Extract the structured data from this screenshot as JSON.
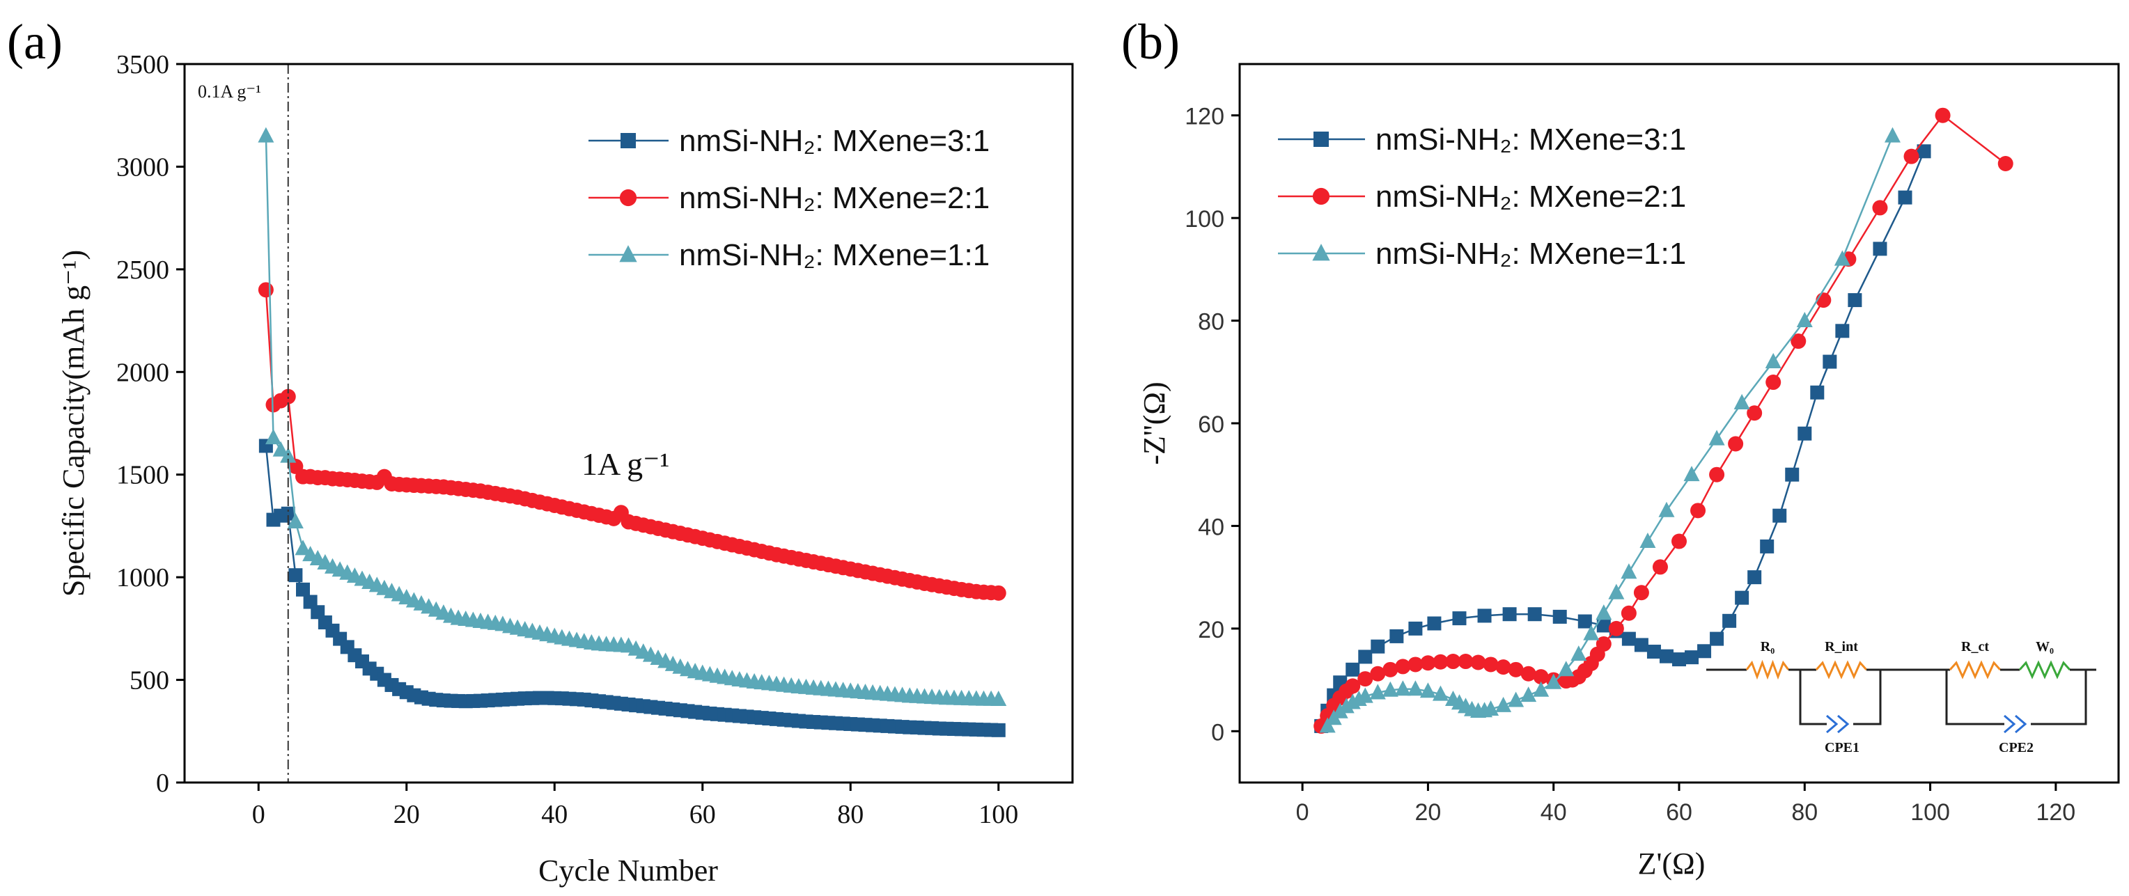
{
  "panels": {
    "a": {
      "label": "(a)"
    },
    "b": {
      "label": "(b)"
    }
  },
  "chart_data": [
    {
      "id": "a",
      "type": "scatter",
      "title": "",
      "xlabel": "Cycle Number",
      "ylabel": "Specific Capacity(mAh g⁻¹)",
      "xlim": [
        -10,
        110
      ],
      "ylim": [
        0,
        3500
      ],
      "xticks": [
        0,
        20,
        40,
        60,
        80,
        100
      ],
      "yticks": [
        0,
        500,
        1000,
        1500,
        2000,
        2500,
        3000,
        3500
      ],
      "grid": false,
      "legend_position": "top-right",
      "annotations": {
        "low_rate": "0.1A g⁻¹",
        "high_rate": "1A g⁻¹",
        "rate_switch_cycle": 4
      },
      "series": [
        {
          "name": "nmSi-NH₂: MXene=3:1",
          "marker": "square",
          "color": "#1f5a8c",
          "x": [
            1,
            2,
            3,
            4,
            5,
            6,
            7,
            8,
            9,
            10,
            11,
            12,
            13,
            14,
            15,
            16,
            17,
            18,
            19,
            20,
            21,
            22,
            23,
            24,
            25,
            26,
            27,
            28,
            29,
            30,
            31,
            32,
            33,
            34,
            35,
            36,
            37,
            38,
            39,
            40,
            41,
            42,
            43,
            44,
            45,
            46,
            47,
            48,
            49,
            50,
            51,
            52,
            53,
            54,
            55,
            56,
            57,
            58,
            59,
            60,
            61,
            62,
            63,
            64,
            65,
            66,
            67,
            68,
            69,
            70,
            71,
            72,
            73,
            74,
            75,
            76,
            77,
            78,
            79,
            80,
            81,
            82,
            83,
            84,
            85,
            86,
            87,
            88,
            89,
            90,
            91,
            92,
            93,
            94,
            95,
            96,
            97,
            98,
            99,
            100
          ],
          "y": [
            1640,
            1280,
            1300,
            1310,
            1010,
            940,
            880,
            830,
            780,
            740,
            700,
            660,
            620,
            590,
            555,
            530,
            500,
            475,
            455,
            440,
            425,
            415,
            408,
            403,
            400,
            398,
            397,
            396,
            397,
            398,
            400,
            402,
            404,
            406,
            408,
            410,
            411,
            412,
            412,
            411,
            410,
            408,
            406,
            404,
            400,
            396,
            392,
            388,
            384,
            380,
            376,
            372,
            368,
            364,
            360,
            356,
            352,
            348,
            344,
            340,
            336,
            333,
            330,
            327,
            324,
            321,
            318,
            315,
            312,
            309,
            306,
            303,
            300,
            297,
            295,
            293,
            291,
            289,
            287,
            285,
            283,
            281,
            279,
            277,
            275,
            273,
            271,
            269,
            268,
            266,
            265,
            263,
            262,
            261,
            260,
            259,
            258,
            257,
            256,
            255
          ]
        },
        {
          "name": "nmSi-NH₂: MXene=2:1",
          "marker": "circle",
          "color": "#f0202a",
          "x": [
            1,
            2,
            3,
            4,
            5,
            6,
            7,
            8,
            9,
            10,
            11,
            12,
            13,
            14,
            15,
            16,
            17,
            18,
            19,
            20,
            21,
            22,
            23,
            24,
            25,
            26,
            27,
            28,
            29,
            30,
            31,
            32,
            33,
            34,
            35,
            36,
            37,
            38,
            39,
            40,
            41,
            42,
            43,
            44,
            45,
            46,
            47,
            48,
            49,
            50,
            51,
            52,
            53,
            54,
            55,
            56,
            57,
            58,
            59,
            60,
            61,
            62,
            63,
            64,
            65,
            66,
            67,
            68,
            69,
            70,
            71,
            72,
            73,
            74,
            75,
            76,
            77,
            78,
            79,
            80,
            81,
            82,
            83,
            84,
            85,
            86,
            87,
            88,
            89,
            90,
            91,
            92,
            93,
            94,
            95,
            96,
            97,
            98,
            99,
            100
          ],
          "y": [
            2400,
            1840,
            1860,
            1880,
            1540,
            1490,
            1490,
            1485,
            1485,
            1480,
            1478,
            1475,
            1472,
            1468,
            1465,
            1462,
            1490,
            1455,
            1452,
            1450,
            1448,
            1446,
            1444,
            1442,
            1440,
            1436,
            1432,
            1428,
            1424,
            1420,
            1414,
            1408,
            1402,
            1396,
            1390,
            1382,
            1374,
            1366,
            1358,
            1350,
            1342,
            1334,
            1326,
            1318,
            1310,
            1302,
            1294,
            1286,
            1315,
            1270,
            1262,
            1254,
            1246,
            1238,
            1230,
            1222,
            1214,
            1206,
            1198,
            1190,
            1182,
            1174,
            1166,
            1158,
            1150,
            1142,
            1134,
            1126,
            1118,
            1110,
            1103,
            1096,
            1089,
            1082,
            1075,
            1068,
            1061,
            1054,
            1047,
            1040,
            1033,
            1026,
            1019,
            1012,
            1005,
            998,
            991,
            984,
            977,
            970,
            964,
            958,
            952,
            946,
            940,
            935,
            930,
            927,
            925,
            923
          ]
        },
        {
          "name": "nmSi-NH₂: MXene=1:1",
          "marker": "triangle",
          "color": "#5ba8b8",
          "x": [
            1,
            2,
            3,
            4,
            5,
            6,
            7,
            8,
            9,
            10,
            11,
            12,
            13,
            14,
            15,
            16,
            17,
            18,
            19,
            20,
            21,
            22,
            23,
            24,
            25,
            26,
            27,
            28,
            29,
            30,
            31,
            32,
            33,
            34,
            35,
            36,
            37,
            38,
            39,
            40,
            41,
            42,
            43,
            44,
            45,
            46,
            47,
            48,
            49,
            50,
            51,
            52,
            53,
            54,
            55,
            56,
            57,
            58,
            59,
            60,
            61,
            62,
            63,
            64,
            65,
            66,
            67,
            68,
            69,
            70,
            71,
            72,
            73,
            74,
            75,
            76,
            77,
            78,
            79,
            80,
            81,
            82,
            83,
            84,
            85,
            86,
            87,
            88,
            89,
            90,
            91,
            92,
            93,
            94,
            95,
            96,
            97,
            98,
            99,
            100
          ],
          "y": [
            3150,
            1680,
            1620,
            1590,
            1270,
            1140,
            1110,
            1090,
            1070,
            1050,
            1035,
            1020,
            1005,
            990,
            975,
            960,
            945,
            930,
            915,
            900,
            885,
            870,
            855,
            840,
            825,
            810,
            800,
            795,
            790,
            785,
            780,
            775,
            770,
            760,
            752,
            744,
            736,
            728,
            720,
            712,
            705,
            698,
            692,
            686,
            680,
            675,
            672,
            670,
            668,
            665,
            650,
            635,
            620,
            605,
            590,
            575,
            562,
            550,
            540,
            532,
            525,
            518,
            512,
            506,
            500,
            495,
            490,
            486,
            482,
            478,
            474,
            470,
            466,
            463,
            460,
            457,
            454,
            451,
            448,
            445,
            442,
            439,
            436,
            433,
            430,
            427,
            424,
            421,
            419,
            417,
            415,
            413,
            411,
            410,
            409,
            408,
            407,
            406,
            406,
            405
          ]
        }
      ]
    },
    {
      "id": "b",
      "type": "scatter",
      "title": "",
      "xlabel": "Z'(Ω)",
      "ylabel": "-Z''(Ω)",
      "xlim": [
        -10,
        130
      ],
      "ylim": [
        -10,
        130
      ],
      "xticks": [
        0,
        20,
        40,
        60,
        80,
        100,
        120
      ],
      "yticks": [
        0,
        20,
        40,
        60,
        80,
        100,
        120
      ],
      "grid": false,
      "legend_position": "top-left",
      "series": [
        {
          "name": "nmSi-NH₂: MXene=3:1",
          "marker": "square",
          "color": "#1f5a8c",
          "x": [
            3,
            4,
            5,
            6,
            8,
            10,
            12,
            15,
            18,
            21,
            25,
            29,
            33,
            37,
            41,
            45,
            48,
            50,
            52,
            54,
            56,
            58,
            60,
            62,
            64,
            66,
            68,
            70,
            72,
            74,
            76,
            78,
            80,
            82,
            84,
            86,
            88,
            92,
            96,
            99
          ],
          "y": [
            1,
            4,
            7,
            9.5,
            12,
            14.5,
            16.5,
            18.5,
            20,
            21,
            22,
            22.5,
            22.8,
            22.8,
            22.3,
            21.4,
            20.6,
            19.5,
            18,
            16.8,
            15.5,
            14.6,
            14,
            14.4,
            15.6,
            18,
            21.5,
            26,
            30,
            36,
            42,
            50,
            58,
            66,
            72,
            78,
            84,
            94,
            104,
            113
          ]
        },
        {
          "name": "nmSi-NH₂: MXene=2:1",
          "marker": "circle",
          "color": "#f0202a",
          "x": [
            3,
            4,
            5,
            6,
            7,
            8,
            10,
            12,
            14,
            16,
            18,
            20,
            22,
            24,
            26,
            28,
            30,
            32,
            34,
            36,
            38,
            40,
            42,
            43,
            44,
            45,
            46,
            47,
            48,
            50,
            52,
            54,
            57,
            60,
            63,
            66,
            69,
            72,
            75,
            79,
            83,
            87,
            92,
            97,
            102,
            112
          ],
          "y": [
            1,
            3,
            5,
            6.5,
            7.8,
            8.8,
            10.2,
            11.2,
            12,
            12.6,
            13,
            13.3,
            13.5,
            13.6,
            13.6,
            13.4,
            13,
            12.5,
            12,
            11.2,
            10.6,
            10,
            9.8,
            10,
            10.6,
            11.8,
            13.2,
            15,
            17,
            20,
            23,
            27,
            32,
            37,
            43,
            50,
            56,
            62,
            68,
            76,
            84,
            92,
            102,
            112,
            120,
            110.6
          ]
        },
        {
          "name": "nmSi-NH₂: MXene=1:1",
          "marker": "triangle",
          "color": "#5ba8b8",
          "x": [
            4,
            5,
            6,
            7,
            8,
            9,
            10,
            12,
            14,
            16,
            18,
            20,
            22,
            24,
            25,
            26,
            27,
            28,
            29,
            30,
            32,
            34,
            36,
            38,
            40,
            42,
            44,
            46,
            48,
            50,
            52,
            55,
            58,
            62,
            66,
            70,
            75,
            80,
            86,
            94
          ],
          "y": [
            1,
            2.5,
            3.8,
            4.8,
            5.6,
            6.2,
            6.8,
            7.5,
            8,
            8.2,
            8.2,
            7.8,
            7.2,
            6.2,
            5.5,
            4.8,
            4.2,
            3.9,
            4,
            4.3,
            5,
            6,
            7,
            8,
            9.5,
            12,
            15,
            19,
            23,
            27,
            31,
            37,
            43,
            50,
            57,
            64,
            72,
            80,
            92,
            116
          ]
        }
      ],
      "equivalent_circuit": {
        "elements": [
          "R₀",
          "R_int",
          "R_ct",
          "W₀",
          "CPE1",
          "CPE2"
        ]
      }
    }
  ]
}
